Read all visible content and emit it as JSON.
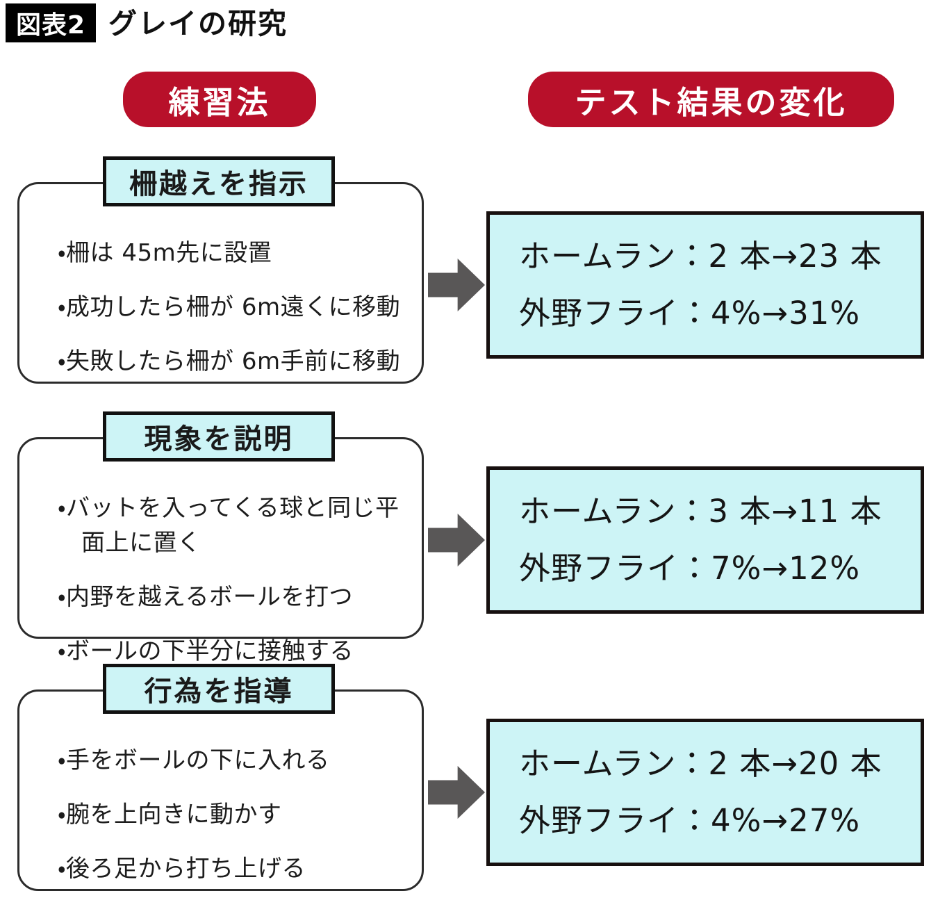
{
  "figure": {
    "tag": "図表2",
    "title": "グレイの研究"
  },
  "columns": {
    "left_header": "練習法",
    "right_header": "テスト結果の変化"
  },
  "colors": {
    "header_red": "#b8102a",
    "box_cyan": "#cdf4f6",
    "arrow_gray": "#595757",
    "tag_black": "#000000",
    "border_black": "#111111"
  },
  "sections": [
    {
      "header": "柵越えを指示",
      "bullets": [
        "・柵は 45m先に設置",
        "・成功したら柵が 6m遠くに移動",
        "・失敗したら柵が 6m手前に移動"
      ],
      "results": [
        "ホームラン：2 本→23 本",
        "外野フライ：4%→31%"
      ]
    },
    {
      "header": "現象を説明",
      "bullets": [
        "・バットを入ってくる球と同じ平面上に置く",
        "・内野を越えるボールを打つ",
        "・ボールの下半分に接触する"
      ],
      "results": [
        "ホームラン：3 本→11 本",
        "外野フライ：7%→12%"
      ]
    },
    {
      "header": "行為を指導",
      "bullets": [
        "・手をボールの下に入れる",
        "・腕を上向きに動かす",
        "・後ろ足から打ち上げる"
      ],
      "results": [
        "ホームラン：2 本→20 本",
        "外野フライ：4%→27%"
      ]
    }
  ]
}
